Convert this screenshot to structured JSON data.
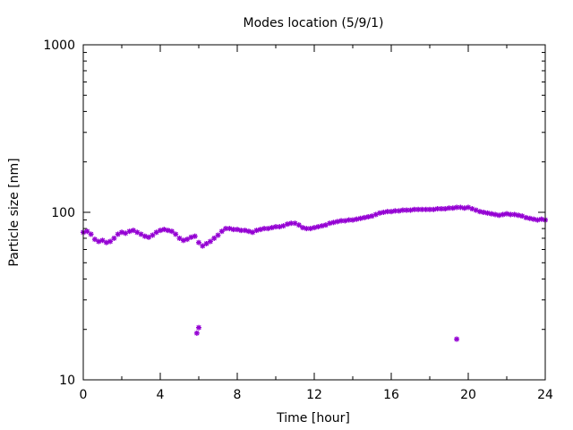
{
  "chart_data": {
    "type": "scatter",
    "title": "Modes location (5/9/1)",
    "xlabel": "Time [hour]",
    "ylabel": "Particle size [nm]",
    "xlim": [
      0,
      24
    ],
    "ylim": [
      10,
      1000
    ],
    "yscale": "log",
    "grid": false,
    "marker_color": "#9400d3",
    "x_ticks": [
      0,
      4,
      8,
      12,
      16,
      20,
      24
    ],
    "x_tick_labels": [
      "0",
      "4",
      "8",
      "12",
      "16",
      "20",
      "24"
    ],
    "y_ticks": [
      10,
      100,
      1000
    ],
    "y_tick_labels": [
      "10",
      "100",
      "1000"
    ],
    "series": [
      {
        "name": "modes",
        "points": [
          [
            0.0,
            76
          ],
          [
            0.2,
            77
          ],
          [
            0.4,
            74
          ],
          [
            0.6,
            69
          ],
          [
            0.8,
            67
          ],
          [
            1.0,
            68
          ],
          [
            1.2,
            66
          ],
          [
            1.4,
            67
          ],
          [
            1.6,
            70
          ],
          [
            1.8,
            74
          ],
          [
            2.0,
            76
          ],
          [
            2.2,
            75
          ],
          [
            2.4,
            77
          ],
          [
            2.6,
            78
          ],
          [
            2.8,
            76
          ],
          [
            3.0,
            74
          ],
          [
            3.2,
            72
          ],
          [
            3.4,
            71
          ],
          [
            3.6,
            73
          ],
          [
            3.8,
            76
          ],
          [
            4.0,
            78
          ],
          [
            4.2,
            79
          ],
          [
            4.4,
            78
          ],
          [
            4.6,
            77
          ],
          [
            4.8,
            74
          ],
          [
            5.0,
            70
          ],
          [
            5.2,
            68
          ],
          [
            5.4,
            69
          ],
          [
            5.6,
            71
          ],
          [
            5.8,
            72
          ],
          [
            6.0,
            66
          ],
          [
            6.2,
            63
          ],
          [
            6.4,
            65
          ],
          [
            6.6,
            67
          ],
          [
            6.8,
            70
          ],
          [
            7.0,
            73
          ],
          [
            7.2,
            77
          ],
          [
            7.4,
            80
          ],
          [
            7.6,
            80
          ],
          [
            7.8,
            79
          ],
          [
            8.0,
            79
          ],
          [
            8.2,
            78
          ],
          [
            8.4,
            78
          ],
          [
            8.6,
            77
          ],
          [
            8.8,
            76
          ],
          [
            9.0,
            78
          ],
          [
            9.2,
            79
          ],
          [
            9.4,
            80
          ],
          [
            9.6,
            80
          ],
          [
            9.8,
            81
          ],
          [
            10.0,
            82
          ],
          [
            10.2,
            82
          ],
          [
            10.4,
            83
          ],
          [
            10.6,
            85
          ],
          [
            10.8,
            86
          ],
          [
            11.0,
            86
          ],
          [
            11.2,
            84
          ],
          [
            11.4,
            81
          ],
          [
            11.6,
            80
          ],
          [
            11.8,
            80
          ],
          [
            12.0,
            81
          ],
          [
            12.2,
            82
          ],
          [
            12.4,
            83
          ],
          [
            12.6,
            84
          ],
          [
            12.8,
            86
          ],
          [
            13.0,
            87
          ],
          [
            13.2,
            88
          ],
          [
            13.4,
            89
          ],
          [
            13.6,
            89
          ],
          [
            13.8,
            90
          ],
          [
            14.0,
            90
          ],
          [
            14.2,
            91
          ],
          [
            14.4,
            92
          ],
          [
            14.6,
            93
          ],
          [
            14.8,
            94
          ],
          [
            15.0,
            95
          ],
          [
            15.2,
            97
          ],
          [
            15.4,
            99
          ],
          [
            15.6,
            100
          ],
          [
            15.8,
            101
          ],
          [
            16.0,
            101
          ],
          [
            16.2,
            102
          ],
          [
            16.4,
            102
          ],
          [
            16.6,
            103
          ],
          [
            16.8,
            103
          ],
          [
            17.0,
            103
          ],
          [
            17.2,
            104
          ],
          [
            17.4,
            104
          ],
          [
            17.6,
            104
          ],
          [
            17.8,
            104
          ],
          [
            18.0,
            104
          ],
          [
            18.2,
            104
          ],
          [
            18.4,
            105
          ],
          [
            18.6,
            105
          ],
          [
            18.8,
            105
          ],
          [
            19.0,
            106
          ],
          [
            19.2,
            106
          ],
          [
            19.4,
            107
          ],
          [
            19.6,
            107
          ],
          [
            19.8,
            106
          ],
          [
            20.0,
            107
          ],
          [
            20.2,
            105
          ],
          [
            20.4,
            103
          ],
          [
            20.6,
            101
          ],
          [
            20.8,
            100
          ],
          [
            21.0,
            99
          ],
          [
            21.2,
            98
          ],
          [
            21.4,
            97
          ],
          [
            21.6,
            96
          ],
          [
            21.8,
            97
          ],
          [
            22.0,
            98
          ],
          [
            22.2,
            97
          ],
          [
            22.4,
            97
          ],
          [
            22.6,
            96
          ],
          [
            22.8,
            95
          ],
          [
            23.0,
            93
          ],
          [
            23.2,
            92
          ],
          [
            23.4,
            91
          ],
          [
            23.6,
            90
          ],
          [
            23.8,
            91
          ],
          [
            24.0,
            90
          ],
          [
            5.9,
            19
          ],
          [
            6.0,
            20.5
          ],
          [
            19.4,
            17.5
          ]
        ]
      }
    ]
  }
}
